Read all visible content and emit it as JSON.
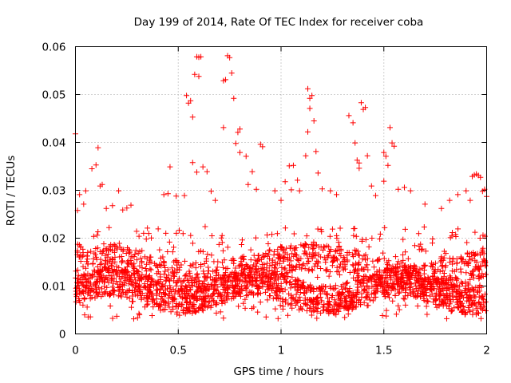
{
  "chart_data": {
    "type": "scatter",
    "title": "Day 199 of 2014, Rate Of TEC Index for receiver coba",
    "xlabel": "GPS time / hours",
    "ylabel": "ROTI / TECUs",
    "xlim": [
      0,
      2
    ],
    "ylim": [
      0,
      0.06
    ],
    "xticks": [
      0,
      0.5,
      1,
      1.5,
      2
    ],
    "xtick_labels": [
      "0",
      "0.5",
      "1",
      "1.5",
      "2"
    ],
    "yticks": [
      0,
      0.01,
      0.02,
      0.03,
      0.04,
      0.05,
      0.06
    ],
    "ytick_labels": [
      "0",
      "0.01",
      "0.02",
      "0.03",
      "0.04",
      "0.05",
      "0.06"
    ],
    "grid": true,
    "marker": "+",
    "marker_color": "#ff0000",
    "series": [
      {
        "name": "ROTI",
        "points": [
          [
            0.0,
            0.0418
          ],
          [
            0.01,
            0.0258
          ],
          [
            0.02,
            0.0291
          ],
          [
            0.05,
            0.0299
          ],
          [
            0.04,
            0.0271
          ],
          [
            0.08,
            0.0345
          ],
          [
            0.1,
            0.0353
          ],
          [
            0.11,
            0.0389
          ],
          [
            0.12,
            0.0309
          ],
          [
            0.13,
            0.0312
          ],
          [
            0.15,
            0.0262
          ],
          [
            0.18,
            0.0268
          ],
          [
            0.21,
            0.0299
          ],
          [
            0.23,
            0.0259
          ],
          [
            0.27,
            0.0269
          ],
          [
            0.46,
            0.0349
          ],
          [
            0.45,
            0.0293
          ],
          [
            0.43,
            0.0291
          ],
          [
            0.49,
            0.0288
          ],
          [
            0.53,
            0.0289
          ],
          [
            0.54,
            0.0498
          ],
          [
            0.55,
            0.0482
          ],
          [
            0.56,
            0.0487
          ],
          [
            0.57,
            0.0453
          ],
          [
            0.58,
            0.0542
          ],
          [
            0.59,
            0.0579
          ],
          [
            0.6,
            0.0578
          ],
          [
            0.61,
            0.0579
          ],
          [
            0.6,
            0.0538
          ],
          [
            0.57,
            0.0358
          ],
          [
            0.59,
            0.0338
          ],
          [
            0.62,
            0.0349
          ],
          [
            0.64,
            0.0339
          ],
          [
            0.66,
            0.0298
          ],
          [
            0.72,
            0.0529
          ],
          [
            0.73,
            0.0531
          ],
          [
            0.74,
            0.0581
          ],
          [
            0.75,
            0.0577
          ],
          [
            0.76,
            0.0545
          ],
          [
            0.77,
            0.0492
          ],
          [
            0.72,
            0.0431
          ],
          [
            0.79,
            0.0421
          ],
          [
            0.8,
            0.0428
          ],
          [
            0.78,
            0.0398
          ],
          [
            0.8,
            0.0379
          ],
          [
            0.83,
            0.0371
          ],
          [
            0.84,
            0.0312
          ],
          [
            0.86,
            0.0339
          ],
          [
            0.9,
            0.0396
          ],
          [
            0.91,
            0.0391
          ],
          [
            0.97,
            0.0299
          ],
          [
            1.0,
            0.0279
          ],
          [
            1.02,
            0.0318
          ],
          [
            1.04,
            0.0351
          ],
          [
            1.06,
            0.0352
          ],
          [
            1.08,
            0.0321
          ],
          [
            1.05,
            0.0301
          ],
          [
            1.09,
            0.0299
          ],
          [
            1.13,
            0.0512
          ],
          [
            1.14,
            0.0492
          ],
          [
            1.15,
            0.0498
          ],
          [
            1.14,
            0.0471
          ],
          [
            1.13,
            0.0422
          ],
          [
            1.16,
            0.0445
          ],
          [
            1.12,
            0.0372
          ],
          [
            1.17,
            0.0381
          ],
          [
            1.18,
            0.0336
          ],
          [
            1.2,
            0.0303
          ],
          [
            1.24,
            0.0299
          ],
          [
            1.27,
            0.0291
          ],
          [
            1.33,
            0.0456
          ],
          [
            1.35,
            0.0441
          ],
          [
            1.36,
            0.0399
          ],
          [
            1.37,
            0.0363
          ],
          [
            1.38,
            0.0357
          ],
          [
            1.39,
            0.0483
          ],
          [
            1.4,
            0.0469
          ],
          [
            1.41,
            0.0473
          ],
          [
            1.42,
            0.0372
          ],
          [
            1.38,
            0.0346
          ],
          [
            1.44,
            0.0309
          ],
          [
            1.46,
            0.0289
          ],
          [
            1.5,
            0.0379
          ],
          [
            1.51,
            0.0371
          ],
          [
            1.52,
            0.0352
          ],
          [
            1.53,
            0.0431
          ],
          [
            1.54,
            0.0399
          ],
          [
            1.55,
            0.0392
          ],
          [
            1.5,
            0.0319
          ],
          [
            1.57,
            0.0302
          ],
          [
            1.6,
            0.0306
          ],
          [
            1.63,
            0.0299
          ],
          [
            1.7,
            0.0271
          ],
          [
            1.78,
            0.0262
          ],
          [
            1.82,
            0.0279
          ],
          [
            1.86,
            0.0291
          ],
          [
            1.9,
            0.0299
          ],
          [
            1.93,
            0.0329
          ],
          [
            1.94,
            0.0332
          ],
          [
            1.95,
            0.0334
          ],
          [
            1.96,
            0.0331
          ],
          [
            1.97,
            0.0327
          ],
          [
            1.98,
            0.0298
          ],
          [
            1.99,
            0.0302
          ],
          [
            2.0,
            0.0287
          ],
          [
            1.92,
            0.0279
          ],
          [
            0.25,
            0.0263
          ],
          [
            0.35,
            0.0221
          ],
          [
            0.68,
            0.0279
          ],
          [
            0.88,
            0.0302
          ]
        ],
        "band_density_points_per_hour": 1300,
        "band_range": [
          0.003,
          0.0225
        ]
      }
    ]
  }
}
